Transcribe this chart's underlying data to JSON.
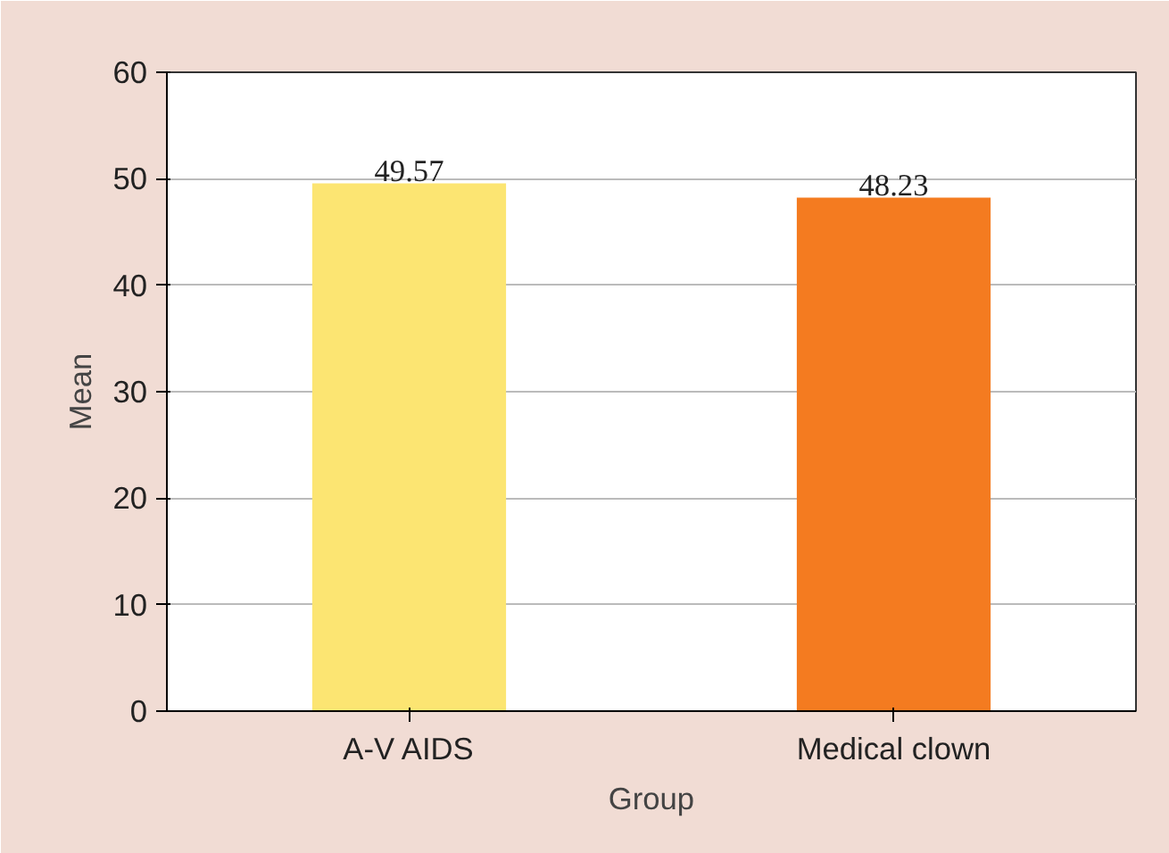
{
  "chart_data": {
    "type": "bar",
    "xlabel": "Group",
    "ylabel": "Mean",
    "categories": [
      "A-V AIDS",
      "Medical clown"
    ],
    "values": [
      49.57,
      48.23
    ],
    "colors": [
      "#fce572",
      "#f47b20"
    ],
    "ylim": [
      0,
      60
    ],
    "yticks": [
      0,
      10,
      20,
      30,
      40,
      50,
      60
    ],
    "grid": "y",
    "data_labels": true
  }
}
